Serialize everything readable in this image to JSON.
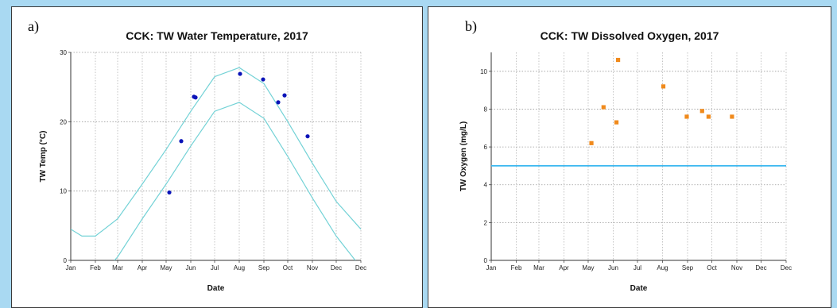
{
  "chart_data": [
    {
      "panel_label": "a)",
      "type": "scatter",
      "title": "CCK: TW Water Temperature, 2017",
      "xlabel": "Date",
      "ylabel": "TW Temp (°C)",
      "x_tick_labels": [
        "Jan",
        "Feb",
        "Mar",
        "Apr",
        "May",
        "Jun",
        "Jul",
        "Aug",
        "Sep",
        "Oct",
        "Nov",
        "Dec",
        "Dec"
      ],
      "x_range": [
        "2017-01-01",
        "2018-01-01"
      ],
      "ylim": [
        0,
        30
      ],
      "y_ticks": [
        0,
        10,
        20,
        30
      ],
      "grid": true,
      "series": [
        {
          "kind": "points",
          "color": "#0a13b8",
          "points": [
            {
              "x": "2017-05-05",
              "y": 9.8
            },
            {
              "x": "2017-05-20",
              "y": 17.2
            },
            {
              "x": "2017-06-05",
              "y": 23.6
            },
            {
              "x": "2017-06-07",
              "y": 23.5
            },
            {
              "x": "2017-08-02",
              "y": 26.9
            },
            {
              "x": "2017-08-31",
              "y": 26.1
            },
            {
              "x": "2017-09-19",
              "y": 22.8
            },
            {
              "x": "2017-09-27",
              "y": 23.8
            },
            {
              "x": "2017-10-26",
              "y": 17.9
            }
          ]
        },
        {
          "kind": "line",
          "color": "#73d2d6",
          "points": [
            {
              "x": "2017-01-01",
              "y": 4.5
            },
            {
              "x": "2017-01-15",
              "y": 3.5
            },
            {
              "x": "2017-02-01",
              "y": 3.5
            },
            {
              "x": "2017-03-01",
              "y": 6.0
            },
            {
              "x": "2017-04-01",
              "y": 11.0
            },
            {
              "x": "2017-05-01",
              "y": 16.0
            },
            {
              "x": "2017-06-01",
              "y": 21.5
            },
            {
              "x": "2017-07-01",
              "y": 26.5
            },
            {
              "x": "2017-08-01",
              "y": 27.8
            },
            {
              "x": "2017-09-01",
              "y": 25.5
            },
            {
              "x": "2017-10-01",
              "y": 20.0
            },
            {
              "x": "2017-11-01",
              "y": 14.0
            },
            {
              "x": "2017-12-01",
              "y": 8.5
            },
            {
              "x": "2018-01-01",
              "y": 4.5
            }
          ]
        },
        {
          "kind": "line",
          "color": "#73d2d6",
          "points": [
            {
              "x": "2017-02-25",
              "y": 0.0
            },
            {
              "x": "2017-03-01",
              "y": 0.5
            },
            {
              "x": "2017-04-01",
              "y": 6.0
            },
            {
              "x": "2017-05-01",
              "y": 11.0
            },
            {
              "x": "2017-06-01",
              "y": 16.5
            },
            {
              "x": "2017-07-01",
              "y": 21.5
            },
            {
              "x": "2017-08-01",
              "y": 22.8
            },
            {
              "x": "2017-09-01",
              "y": 20.5
            },
            {
              "x": "2017-10-01",
              "y": 15.0
            },
            {
              "x": "2017-11-01",
              "y": 9.0
            },
            {
              "x": "2017-12-01",
              "y": 3.5
            },
            {
              "x": "2017-12-25",
              "y": 0.0
            }
          ]
        }
      ]
    },
    {
      "panel_label": "b)",
      "type": "scatter",
      "title": "CCK: TW Dissolved Oxygen, 2017",
      "xlabel": "Date",
      "ylabel": "TW Oxygen (mg/L)",
      "x_tick_labels": [
        "Jan",
        "Feb",
        "Mar",
        "Apr",
        "May",
        "Jun",
        "Jul",
        "Aug",
        "Sep",
        "Oct",
        "Nov",
        "Dec",
        "Dec"
      ],
      "x_range": [
        "2017-01-01",
        "2018-01-01"
      ],
      "ylim": [
        0,
        11
      ],
      "y_ticks": [
        0,
        2,
        4,
        6,
        8,
        10
      ],
      "grid": true,
      "series": [
        {
          "kind": "squares",
          "color": "#f08a1c",
          "points": [
            {
              "x": "2017-05-05",
              "y": 6.2
            },
            {
              "x": "2017-05-20",
              "y": 8.1
            },
            {
              "x": "2017-06-05",
              "y": 7.3
            },
            {
              "x": "2017-06-07",
              "y": 10.6
            },
            {
              "x": "2017-08-02",
              "y": 9.2
            },
            {
              "x": "2017-08-31",
              "y": 7.6
            },
            {
              "x": "2017-09-19",
              "y": 7.9
            },
            {
              "x": "2017-09-27",
              "y": 7.6
            },
            {
              "x": "2017-10-26",
              "y": 7.6
            }
          ]
        },
        {
          "kind": "hline",
          "color": "#3cb8f0",
          "y": 5.0
        }
      ]
    }
  ]
}
